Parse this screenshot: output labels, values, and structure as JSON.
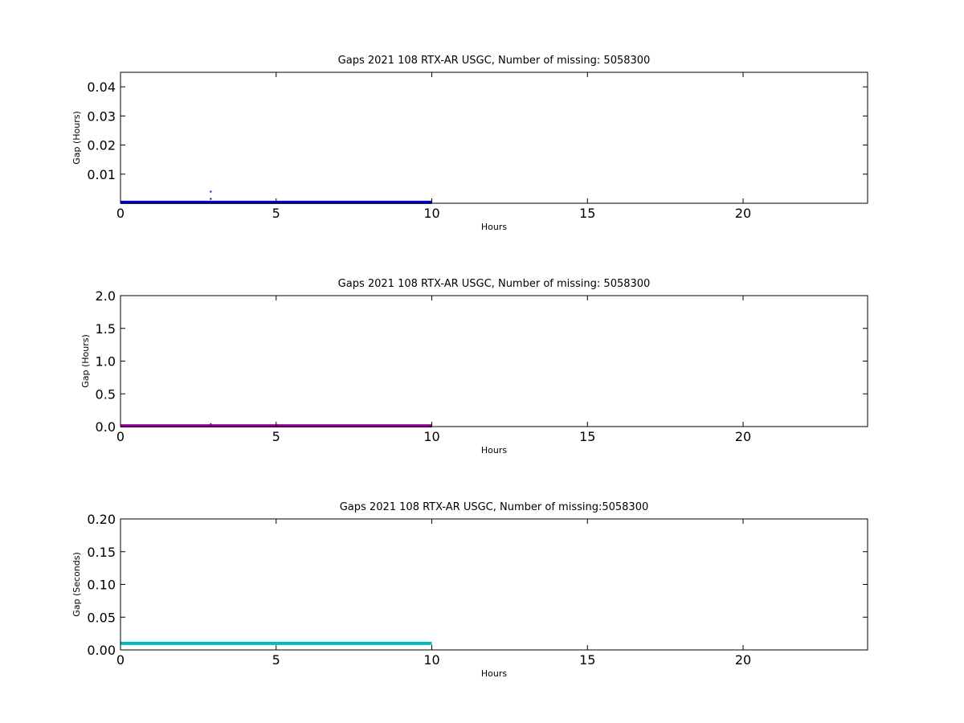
{
  "chart_data": [
    {
      "type": "scatter",
      "title": "Gaps 2021 108 RTX-AR  USGC, Number of missing: 5058300",
      "xlabel": "Hours",
      "ylabel": "Gap (Hours)",
      "xlim": [
        0,
        24
      ],
      "ylim": [
        0,
        0.045
      ],
      "xticks": [
        0,
        5,
        10,
        15,
        20
      ],
      "xtick_labels": [
        "0",
        "5",
        "10",
        "15",
        "20"
      ],
      "yticks": [
        0.01,
        0.02,
        0.03,
        0.04
      ],
      "ytick_labels": [
        "0.01",
        "0.02",
        "0.03",
        "0.04"
      ],
      "grid": false,
      "color": "#0000cc",
      "series": [
        {
          "segments": [
            {
              "x0": 0,
              "x1": 10,
              "y": 0.0003
            }
          ],
          "points": [
            {
              "x": 2.9,
              "y": 0.0015
            },
            {
              "x": 2.9,
              "y": 0.004
            }
          ]
        }
      ]
    },
    {
      "type": "scatter",
      "title": "Gaps 2021 108 RTX-AR  USGC, Number of missing: 5058300",
      "xlabel": "Hours",
      "ylabel": "Gap (Hours)",
      "xlim": [
        0,
        24
      ],
      "ylim": [
        0,
        2.0
      ],
      "xticks": [
        0,
        5,
        10,
        15,
        20
      ],
      "xtick_labels": [
        "0",
        "5",
        "10",
        "15",
        "20"
      ],
      "yticks": [
        0.0,
        0.5,
        1.0,
        1.5,
        2.0
      ],
      "ytick_labels": [
        "0.0",
        "0.5",
        "1.0",
        "1.5",
        "2.0"
      ],
      "grid": false,
      "color": "#990099",
      "series": [
        {
          "segments": [
            {
              "x0": 0,
              "x1": 10,
              "y": 0.01
            }
          ],
          "points": [
            {
              "x": 2.9,
              "y": 0.04
            }
          ]
        }
      ]
    },
    {
      "type": "scatter",
      "title": "Gaps 2021 108 RTX-AR  USGC, Number of missing:5058300",
      "xlabel": "Hours",
      "ylabel": "Gap (Seconds)",
      "xlim": [
        0,
        24
      ],
      "ylim": [
        0,
        0.2
      ],
      "xticks": [
        0,
        5,
        10,
        15,
        20
      ],
      "xtick_labels": [
        "0",
        "5",
        "10",
        "15",
        "20"
      ],
      "yticks": [
        0.0,
        0.05,
        0.1,
        0.15,
        0.2
      ],
      "ytick_labels": [
        "0.00",
        "0.05",
        "0.10",
        "0.15",
        "0.20"
      ],
      "grid": false,
      "color": "#00bbbb",
      "series": [
        {
          "segments": [
            {
              "x0": 0,
              "x1": 10,
              "y": 0.01
            }
          ],
          "points": []
        }
      ]
    }
  ]
}
